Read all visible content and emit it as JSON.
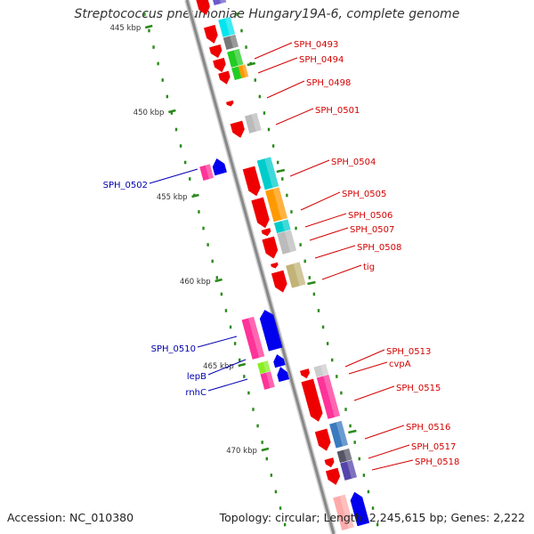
{
  "title": "Streptococcus pneumoniae Hungary19A-6, complete genome",
  "footer": {
    "accession": "Accession: NC_010380",
    "summary": "Topology: circular; Length: 2,245,615 bp; Genes: 2,222"
  },
  "colors": {
    "backbone": "#8a8a8a",
    "tick": "#2a8a1a",
    "forward_label": "#d40000",
    "reverse_label": "#0000b0"
  },
  "ticks": [
    {
      "label": "445 kbp",
      "kbp": 445
    },
    {
      "label": "450 kbp",
      "kbp": 450
    },
    {
      "label": "455 kbp",
      "kbp": 455
    },
    {
      "label": "460 kbp",
      "kbp": 460
    },
    {
      "label": "465 kbp",
      "kbp": 465
    },
    {
      "label": "470 kbp",
      "kbp": 470
    }
  ],
  "forward_genes": [
    "SPH_0493",
    "SPH_0494",
    "SPH_0498",
    "SPH_0501",
    "SPH_0504",
    "SPH_0505",
    "SPH_0506",
    "SPH_0507",
    "SPH_0508",
    "tig",
    "SPH_0513",
    "cvpA",
    "SPH_0515",
    "SPH_0516",
    "SPH_0517",
    "SPH_0518"
  ],
  "reverse_genes": [
    "SPH_0502",
    "SPH_0510",
    "lepB",
    "rnhC"
  ]
}
